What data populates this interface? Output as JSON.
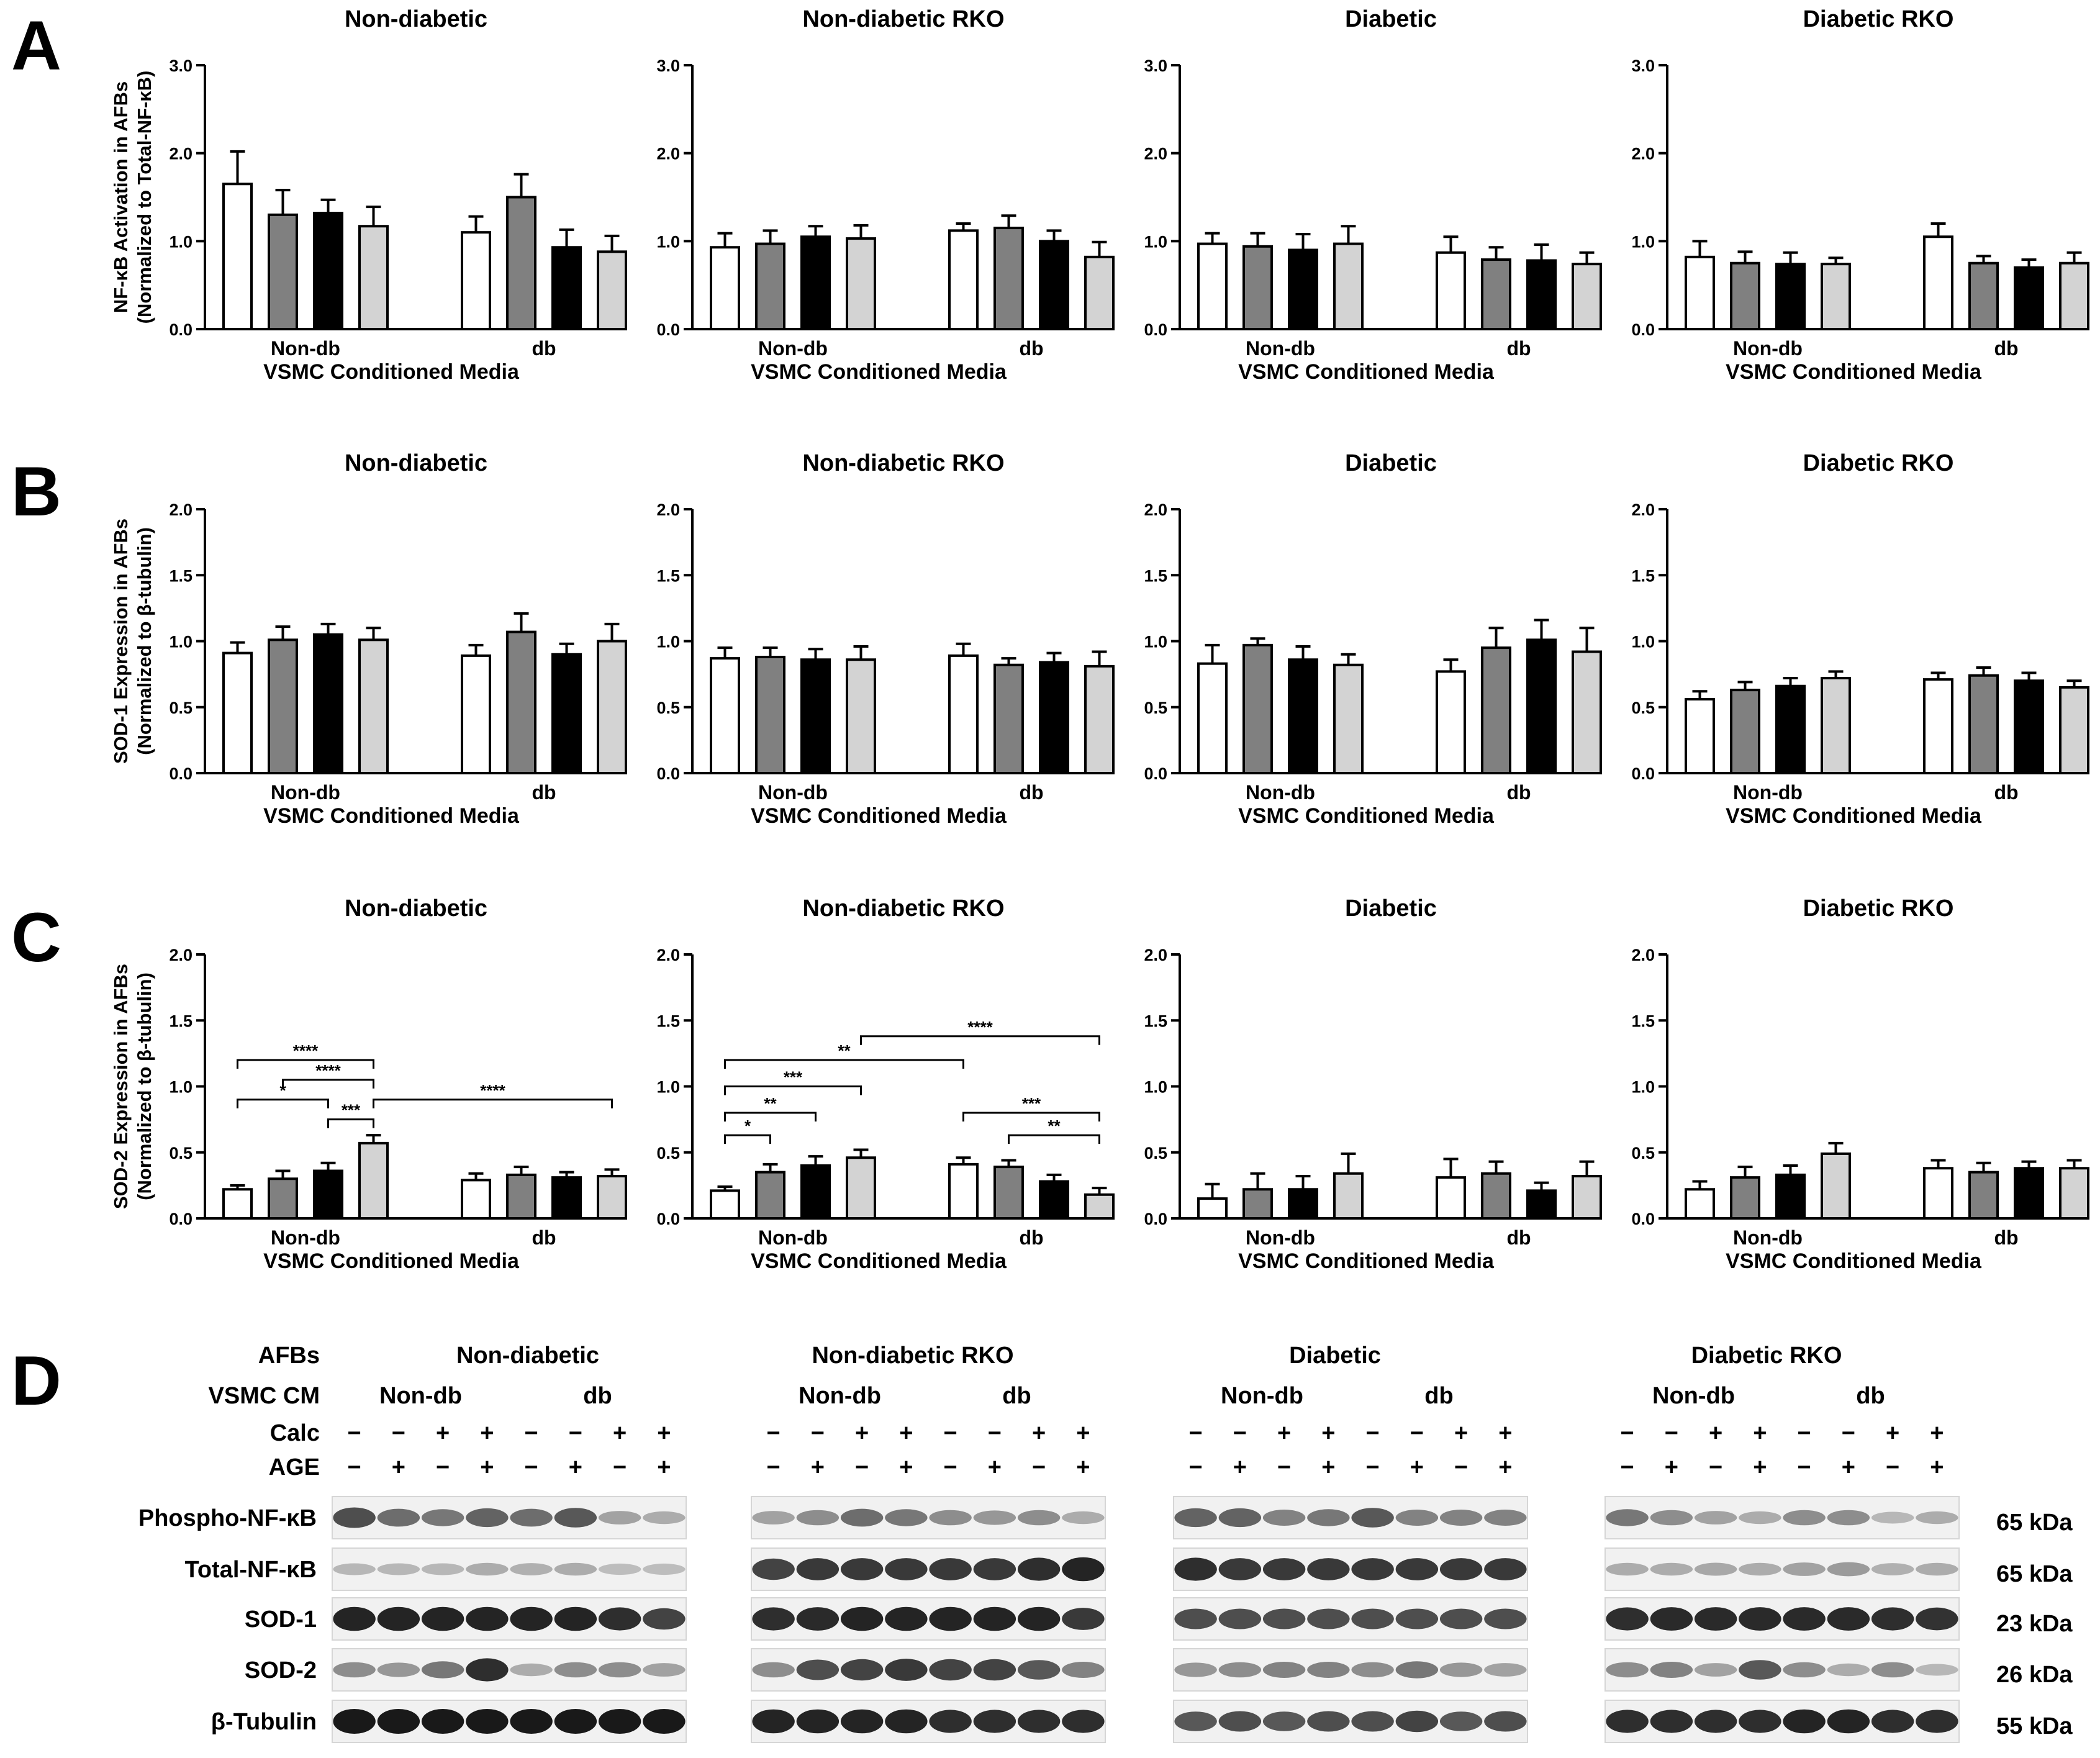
{
  "panels": [
    "A",
    "B",
    "C",
    "D"
  ],
  "chart_data": [
    {
      "type": "bar",
      "row": "A",
      "ylabel": "NF-κB Activation in AFBs",
      "ylabel2": "(Normalized to Total-NF-κB)",
      "ylim": [
        0,
        3.0
      ],
      "yticks": [
        "0.0",
        "1.0",
        "2.0",
        "3.0"
      ],
      "ytick_values": [
        0,
        1,
        2,
        3
      ],
      "categories": [
        "Non-db",
        "db"
      ],
      "xlabel": "VSMC Conditioned Media",
      "series_colors": [
        "#ffffff",
        "#808080",
        "#000000",
        "#d3d3d3"
      ],
      "subplots": [
        {
          "title": "Non-diabetic",
          "values": [
            [
              1.65,
              1.3,
              1.32,
              1.17
            ],
            [
              1.1,
              1.5,
              0.93,
              0.88
            ]
          ],
          "errors": [
            [
              0.37,
              0.28,
              0.15,
              0.22
            ],
            [
              0.18,
              0.26,
              0.2,
              0.18
            ]
          ],
          "sig": []
        },
        {
          "title": "Non-diabetic RKO",
          "values": [
            [
              0.93,
              0.97,
              1.05,
              1.03
            ],
            [
              1.12,
              1.15,
              1.0,
              0.82
            ]
          ],
          "errors": [
            [
              0.16,
              0.15,
              0.12,
              0.15
            ],
            [
              0.08,
              0.14,
              0.12,
              0.17
            ]
          ],
          "sig": []
        },
        {
          "title": "Diabetic",
          "values": [
            [
              0.97,
              0.94,
              0.9,
              0.97
            ],
            [
              0.87,
              0.79,
              0.78,
              0.74
            ]
          ],
          "errors": [
            [
              0.12,
              0.15,
              0.18,
              0.2
            ],
            [
              0.18,
              0.14,
              0.18,
              0.13
            ]
          ],
          "sig": []
        },
        {
          "title": "Diabetic RKO",
          "values": [
            [
              0.82,
              0.75,
              0.74,
              0.74
            ],
            [
              1.05,
              0.75,
              0.7,
              0.75
            ]
          ],
          "errors": [
            [
              0.18,
              0.13,
              0.13,
              0.07
            ],
            [
              0.15,
              0.08,
              0.09,
              0.12
            ]
          ],
          "sig": []
        }
      ]
    },
    {
      "type": "bar",
      "row": "B",
      "ylabel": "SOD-1 Expression in AFBs",
      "ylabel2": "(Normalized to β-tubulin)",
      "ylim": [
        0,
        2.0
      ],
      "yticks": [
        "0.0",
        "0.5",
        "1.0",
        "1.5",
        "2.0"
      ],
      "ytick_values": [
        0,
        0.5,
        1,
        1.5,
        2
      ],
      "categories": [
        "Non-db",
        "db"
      ],
      "xlabel": "VSMC Conditioned Media",
      "series_colors": [
        "#ffffff",
        "#808080",
        "#000000",
        "#d3d3d3"
      ],
      "subplots": [
        {
          "title": "Non-diabetic",
          "values": [
            [
              0.91,
              1.01,
              1.05,
              1.01
            ],
            [
              0.89,
              1.07,
              0.9,
              1.0
            ]
          ],
          "errors": [
            [
              0.08,
              0.1,
              0.08,
              0.09
            ],
            [
              0.08,
              0.14,
              0.08,
              0.13
            ]
          ],
          "sig": []
        },
        {
          "title": "Non-diabetic RKO",
          "values": [
            [
              0.87,
              0.88,
              0.86,
              0.86
            ],
            [
              0.89,
              0.82,
              0.84,
              0.81
            ]
          ],
          "errors": [
            [
              0.08,
              0.07,
              0.08,
              0.1
            ],
            [
              0.09,
              0.05,
              0.07,
              0.11
            ]
          ],
          "sig": []
        },
        {
          "title": "Diabetic",
          "values": [
            [
              0.83,
              0.97,
              0.86,
              0.82
            ],
            [
              0.77,
              0.95,
              1.01,
              0.92
            ]
          ],
          "errors": [
            [
              0.14,
              0.05,
              0.1,
              0.08
            ],
            [
              0.09,
              0.15,
              0.15,
              0.18
            ]
          ],
          "sig": []
        },
        {
          "title": "Diabetic RKO",
          "values": [
            [
              0.56,
              0.63,
              0.66,
              0.72
            ],
            [
              0.71,
              0.74,
              0.7,
              0.65
            ]
          ],
          "errors": [
            [
              0.06,
              0.06,
              0.06,
              0.05
            ],
            [
              0.05,
              0.06,
              0.06,
              0.05
            ]
          ],
          "sig": []
        }
      ]
    },
    {
      "type": "bar",
      "row": "C",
      "ylabel": "SOD-2 Expression in AFBs",
      "ylabel2": "(Normalized to β-tubulin)",
      "ylim": [
        0,
        2.0
      ],
      "yticks": [
        "0.0",
        "0.5",
        "1.0",
        "1.5",
        "2.0"
      ],
      "ytick_values": [
        0,
        0.5,
        1,
        1.5,
        2
      ],
      "categories": [
        "Non-db",
        "db"
      ],
      "xlabel": "VSMC Conditioned Media",
      "series_colors": [
        "#ffffff",
        "#808080",
        "#000000",
        "#d3d3d3"
      ],
      "subplots": [
        {
          "title": "Non-diabetic",
          "values": [
            [
              0.22,
              0.3,
              0.36,
              0.57
            ],
            [
              0.29,
              0.33,
              0.31,
              0.32
            ]
          ],
          "errors": [
            [
              0.03,
              0.06,
              0.06,
              0.06
            ],
            [
              0.05,
              0.06,
              0.04,
              0.05
            ]
          ],
          "sig": [
            {
              "from": 0,
              "to": 3,
              "y": 1.2,
              "label": "****"
            },
            {
              "from": 1,
              "to": 3,
              "y": 1.05,
              "label": "****"
            },
            {
              "from": 0,
              "to": 2,
              "y": 0.9,
              "label": "*"
            },
            {
              "from": 2,
              "to": 3,
              "y": 0.75,
              "label": "***"
            },
            {
              "from": 3,
              "to": 7,
              "y": 0.9,
              "label": "****"
            }
          ]
        },
        {
          "title": "Non-diabetic RKO",
          "values": [
            [
              0.21,
              0.35,
              0.4,
              0.46
            ],
            [
              0.41,
              0.39,
              0.28,
              0.18
            ]
          ],
          "errors": [
            [
              0.03,
              0.06,
              0.07,
              0.06
            ],
            [
              0.05,
              0.05,
              0.05,
              0.05
            ]
          ],
          "sig": [
            {
              "from": 0,
              "to": 1,
              "y": 0.63,
              "label": "*"
            },
            {
              "from": 0,
              "to": 2,
              "y": 0.8,
              "label": "**"
            },
            {
              "from": 0,
              "to": 3,
              "y": 1.0,
              "label": "***"
            },
            {
              "from": 0,
              "to": 4,
              "y": 1.2,
              "label": "**"
            },
            {
              "from": 3,
              "to": 7,
              "y": 1.38,
              "label": "****"
            },
            {
              "from": 4,
              "to": 7,
              "y": 0.8,
              "label": "***"
            },
            {
              "from": 5,
              "to": 7,
              "y": 0.63,
              "label": "**"
            }
          ]
        },
        {
          "title": "Diabetic",
          "values": [
            [
              0.15,
              0.22,
              0.22,
              0.34
            ],
            [
              0.31,
              0.34,
              0.21,
              0.32
            ]
          ],
          "errors": [
            [
              0.11,
              0.12,
              0.1,
              0.15
            ],
            [
              0.14,
              0.09,
              0.06,
              0.11
            ]
          ],
          "sig": []
        },
        {
          "title": "Diabetic RKO",
          "values": [
            [
              0.22,
              0.31,
              0.33,
              0.49
            ],
            [
              0.38,
              0.35,
              0.38,
              0.38
            ]
          ],
          "errors": [
            [
              0.06,
              0.08,
              0.07,
              0.08
            ],
            [
              0.06,
              0.07,
              0.05,
              0.06
            ]
          ],
          "sig": []
        }
      ]
    }
  ],
  "blots": {
    "row_labels": [
      "AFBs",
      "VSMC CM",
      "Calc",
      "AGE"
    ],
    "groups": [
      "Non-diabetic",
      "Non-diabetic RKO",
      "Diabetic",
      "Diabetic RKO"
    ],
    "cm_labels": [
      "Non-db",
      "db"
    ],
    "calc": [
      "−",
      "−",
      "+",
      "+",
      "−",
      "−",
      "+",
      "+"
    ],
    "age": [
      "−",
      "+",
      "−",
      "+",
      "−",
      "+",
      "−",
      "+"
    ],
    "proteins": [
      {
        "name": "Phospho-NF-κB",
        "kda": "65 kDa"
      },
      {
        "name": "Total-NF-κB",
        "kda": "65 kDa"
      },
      {
        "name": "SOD-1",
        "kda": "23 kDa"
      },
      {
        "name": "SOD-2",
        "kda": "26 kDa"
      },
      {
        "name": "β-Tubulin",
        "kda": "55 kDa"
      }
    ],
    "band_intensity": [
      [
        [
          0.75,
          0.6,
          0.55,
          0.65,
          0.6,
          0.7,
          0.35,
          0.3
        ],
        [
          0.35,
          0.45,
          0.6,
          0.55,
          0.45,
          0.4,
          0.45,
          0.3
        ],
        [
          0.65,
          0.65,
          0.5,
          0.55,
          0.7,
          0.5,
          0.5,
          0.5
        ],
        [
          0.55,
          0.45,
          0.35,
          0.3,
          0.45,
          0.45,
          0.25,
          0.3
        ]
      ],
      [
        [
          0.25,
          0.25,
          0.25,
          0.3,
          0.28,
          0.3,
          0.22,
          0.22
        ],
        [
          0.8,
          0.85,
          0.85,
          0.85,
          0.85,
          0.85,
          0.9,
          0.95
        ],
        [
          0.9,
          0.85,
          0.85,
          0.85,
          0.85,
          0.85,
          0.85,
          0.85
        ],
        [
          0.3,
          0.3,
          0.32,
          0.3,
          0.35,
          0.38,
          0.28,
          0.3
        ]
      ],
      [
        [
          0.95,
          0.95,
          0.95,
          0.95,
          0.95,
          0.95,
          0.9,
          0.8
        ],
        [
          0.9,
          0.92,
          0.95,
          0.95,
          0.95,
          0.95,
          0.95,
          0.85
        ],
        [
          0.75,
          0.75,
          0.75,
          0.75,
          0.75,
          0.75,
          0.75,
          0.75
        ],
        [
          0.9,
          0.92,
          0.92,
          0.92,
          0.92,
          0.92,
          0.9,
          0.88
        ]
      ],
      [
        [
          0.45,
          0.4,
          0.55,
          0.9,
          0.3,
          0.45,
          0.45,
          0.35
        ],
        [
          0.45,
          0.75,
          0.8,
          0.85,
          0.8,
          0.8,
          0.7,
          0.5
        ],
        [
          0.4,
          0.45,
          0.5,
          0.5,
          0.45,
          0.55,
          0.4,
          0.35
        ],
        [
          0.45,
          0.5,
          0.35,
          0.7,
          0.45,
          0.3,
          0.45,
          0.25
        ]
      ],
      [
        [
          1.0,
          1.0,
          1.0,
          1.0,
          1.0,
          1.0,
          1.0,
          1.0
        ],
        [
          0.95,
          0.95,
          0.95,
          0.95,
          0.9,
          0.9,
          0.9,
          0.9
        ],
        [
          0.7,
          0.75,
          0.7,
          0.75,
          0.75,
          0.8,
          0.7,
          0.75
        ],
        [
          0.9,
          0.9,
          0.9,
          0.9,
          0.95,
          0.95,
          0.9,
          0.9
        ]
      ]
    ]
  }
}
